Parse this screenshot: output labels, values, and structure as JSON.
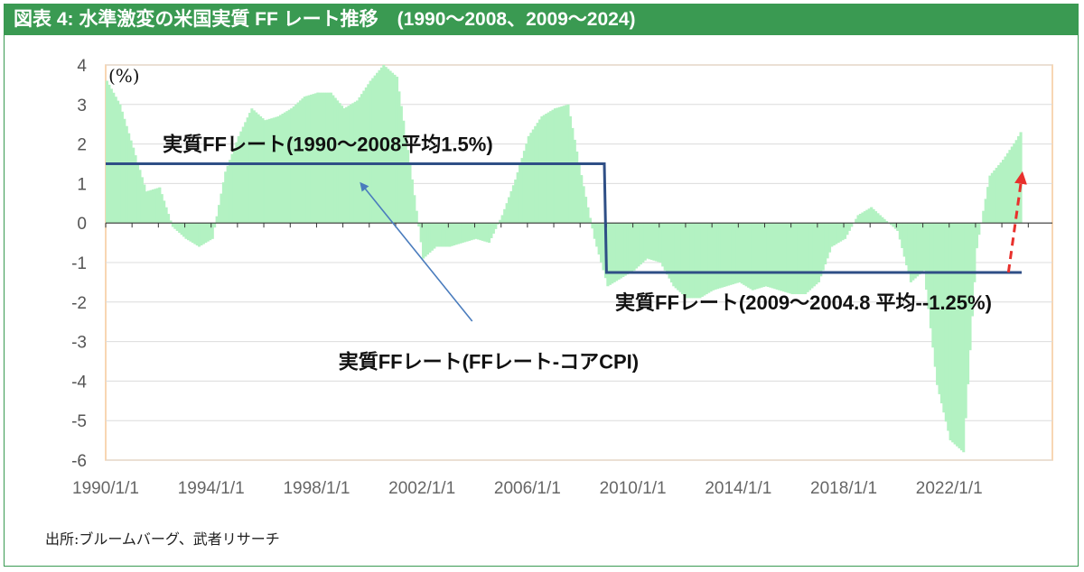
{
  "figure": {
    "title": "図表 4: 水準激変の米国実質 FF レート推移　(1990～2008、2009～2024)",
    "source": "出所:ブルームバーグ、武者リサーチ",
    "accent_color": "#3a9a52"
  },
  "chart_data": {
    "type": "area",
    "unit_label": "(%)",
    "ylim": [
      -6,
      4
    ],
    "yticks": [
      4,
      3,
      2,
      1,
      0,
      -1,
      -2,
      -3,
      -4,
      -5,
      -6
    ],
    "xlim": [
      "1990-01-01",
      "2025-12-01"
    ],
    "xticks": [
      "1990/1/1",
      "1994/1/1",
      "1998/1/1",
      "2002/1/1",
      "2006/1/1",
      "2010/1/1",
      "2014/1/1",
      "2018/1/1",
      "2022/1/1"
    ],
    "grid": true,
    "series": [
      {
        "name": "実質FFレート(FFレート-コアCPI)",
        "type": "area",
        "color": "#b3f2c2",
        "points": [
          [
            "1990-01",
            3.6
          ],
          [
            "1990-07",
            3.0
          ],
          [
            "1991-01",
            1.9
          ],
          [
            "1991-07",
            0.8
          ],
          [
            "1992-01",
            0.9
          ],
          [
            "1992-07",
            -0.1
          ],
          [
            "1993-01",
            -0.4
          ],
          [
            "1993-07",
            -0.6
          ],
          [
            "1994-01",
            -0.4
          ],
          [
            "1994-07",
            1.3
          ],
          [
            "1995-01",
            2.2
          ],
          [
            "1995-07",
            2.9
          ],
          [
            "1996-01",
            2.6
          ],
          [
            "1996-07",
            2.7
          ],
          [
            "1997-01",
            2.9
          ],
          [
            "1997-07",
            3.2
          ],
          [
            "1998-01",
            3.3
          ],
          [
            "1998-07",
            3.3
          ],
          [
            "1999-01",
            2.9
          ],
          [
            "1999-07",
            3.1
          ],
          [
            "2000-01",
            3.6
          ],
          [
            "2000-07",
            4.0
          ],
          [
            "2001-01",
            3.7
          ],
          [
            "2001-07",
            1.5
          ],
          [
            "2002-01",
            -0.9
          ],
          [
            "2002-07",
            -0.6
          ],
          [
            "2003-01",
            -0.6
          ],
          [
            "2003-07",
            -0.5
          ],
          [
            "2004-01",
            -0.4
          ],
          [
            "2004-07",
            -0.5
          ],
          [
            "2005-01",
            0.2
          ],
          [
            "2005-07",
            1.1
          ],
          [
            "2006-01",
            2.2
          ],
          [
            "2006-07",
            2.7
          ],
          [
            "2007-01",
            2.9
          ],
          [
            "2007-07",
            3.0
          ],
          [
            "2008-01",
            1.2
          ],
          [
            "2008-07",
            -0.4
          ],
          [
            "2009-01",
            -1.6
          ],
          [
            "2009-07",
            -1.4
          ],
          [
            "2010-01",
            -1.2
          ],
          [
            "2010-07",
            -0.9
          ],
          [
            "2011-01",
            -1.0
          ],
          [
            "2011-07",
            -1.6
          ],
          [
            "2012-01",
            -1.9
          ],
          [
            "2012-07",
            -1.9
          ],
          [
            "2013-01",
            -1.7
          ],
          [
            "2013-07",
            -1.6
          ],
          [
            "2014-01",
            -1.5
          ],
          [
            "2014-07",
            -1.7
          ],
          [
            "2015-01",
            -1.6
          ],
          [
            "2015-07",
            -1.7
          ],
          [
            "2016-01",
            -1.8
          ],
          [
            "2016-07",
            -1.8
          ],
          [
            "2017-01",
            -1.5
          ],
          [
            "2017-07",
            -0.6
          ],
          [
            "2018-01",
            -0.4
          ],
          [
            "2018-07",
            0.2
          ],
          [
            "2019-01",
            0.4
          ],
          [
            "2019-07",
            0.1
          ],
          [
            "2020-01",
            -0.2
          ],
          [
            "2020-07",
            -1.5
          ],
          [
            "2021-01",
            -1.2
          ],
          [
            "2021-07",
            -4.1
          ],
          [
            "2022-01",
            -5.5
          ],
          [
            "2022-07",
            -5.8
          ],
          [
            "2023-01",
            -0.6
          ],
          [
            "2023-07",
            1.2
          ],
          [
            "2024-01",
            1.6
          ],
          [
            "2024-07",
            2.1
          ],
          [
            "2024-09",
            2.3
          ],
          [
            "2024-10",
            1.2
          ]
        ]
      },
      {
        "name": "実質FFレート(1990～2008平均1.5%)",
        "type": "step",
        "color": "#2f4f86",
        "points": [
          [
            "1990-01",
            1.5
          ],
          [
            "2008-12",
            1.5
          ],
          [
            "2009-01",
            -1.25
          ],
          [
            "2024-10",
            -1.25
          ]
        ]
      }
    ],
    "annotations": [
      {
        "label": "実質FFレート(1990～2008平均1.5%)",
        "x": "1992-03",
        "y": 2.0
      },
      {
        "label": "実質FFレート(2009～2004.8 平均--1.25%)",
        "x": "2009-05",
        "y": -2.0
      },
      {
        "label": "実質FFレート(FFレート-コアCPI)",
        "x": "1998-11",
        "y": -3.5,
        "arrow_to": [
          "1999-10",
          0.95
        ]
      }
    ],
    "trend_arrow": {
      "color": "#e8302c",
      "style": "dashed",
      "from": [
        "2024-04",
        -1.25
      ],
      "to": [
        "2024-10",
        1.15
      ]
    }
  }
}
